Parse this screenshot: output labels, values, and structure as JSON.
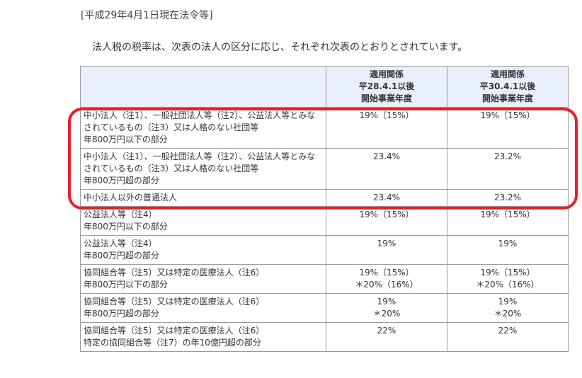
{
  "heading": "[平成29年4月1日現在法令等]",
  "intro": "法人税の税率は、次表の法人の区分に応じ、それぞれ次表のとおりとされています。",
  "table": {
    "header": {
      "col_a": [
        "適用関係",
        "平28.4.1以後",
        "開始事業年度"
      ],
      "col_b": [
        "適用関係",
        "平30.4.1以後",
        "開始事業年度"
      ]
    },
    "rows": [
      {
        "category": [
          "中小法人（注1）、一般社団法人等（注2）、公益法人等とみなされているもの（注3）又は人格のない社団等",
          "年800万円以下の部分"
        ],
        "a": [
          "19%（15%）"
        ],
        "b": [
          "19%（15%）"
        ]
      },
      {
        "category": [
          "中小法人（注1）、一般社団法人等（注2）、公益法人等とみなされているもの（注3）又は人格のない社団等",
          "年800万円超の部分"
        ],
        "a": [
          "23.4%"
        ],
        "b": [
          "23.2%"
        ]
      },
      {
        "category": [
          "中小法人以外の普通法人"
        ],
        "a": [
          "23.4%"
        ],
        "b": [
          "23.2%"
        ]
      },
      {
        "category": [
          "公益法人等（注4）",
          "年800万円以下の部分"
        ],
        "a": [
          "19%（15%）"
        ],
        "b": [
          "19%（15%）"
        ]
      },
      {
        "category": [
          "公益法人等（注4）",
          "年800万円超の部分"
        ],
        "a": [
          "19%"
        ],
        "b": [
          "19%"
        ]
      },
      {
        "category": [
          "協同組合等（注5）又は特定の医療法人（注6）",
          "年800万円以下の部分"
        ],
        "a": [
          "19%（15%）",
          "＊20%（16%）"
        ],
        "b": [
          "19%（15%）",
          "＊20%（16%）"
        ]
      },
      {
        "category": [
          "協同組合等（注5）又は特定の医療法人（注6）",
          "年800万円超の部分"
        ],
        "a": [
          "19%",
          "＊20%"
        ],
        "b": [
          "19%",
          "＊20%"
        ]
      },
      {
        "category": [
          "協同組合等（注5）又は特定の医療法人（注6）",
          "特定の協同組合等（注7）の年10億円超の部分"
        ],
        "a": [
          "22%"
        ],
        "b": [
          "22%"
        ]
      }
    ]
  },
  "highlight_color": "#ee1c25"
}
